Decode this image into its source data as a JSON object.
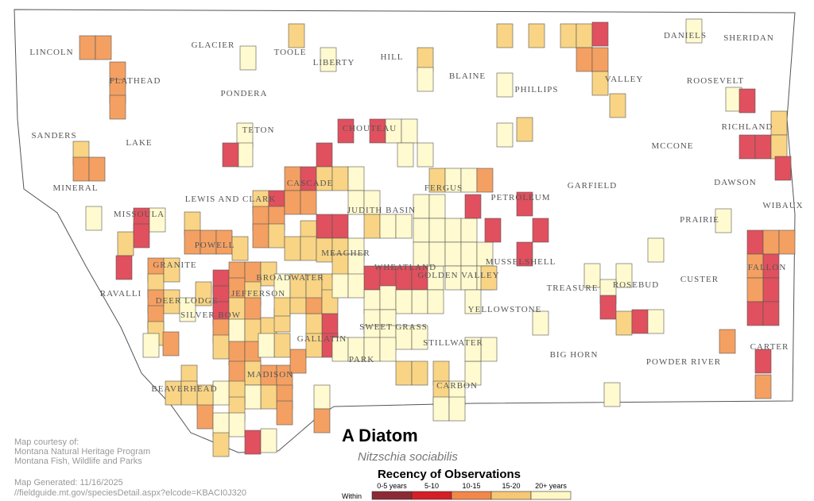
{
  "map": {
    "counties": [
      "LINCOLN",
      "GLACIER",
      "TOOLE",
      "LIBERTY",
      "HILL",
      "BLAINE",
      "PHILLIPS",
      "VALLEY",
      "DANIELS",
      "SHERIDAN",
      "FLATHEAD",
      "PONDERA",
      "ROOSEVELT",
      "SANDERS",
      "TETON",
      "CHOUTEAU",
      "RICHLAND",
      "LAKE",
      "MCCONE",
      "MINERAL",
      "CASCADE",
      "FERGUS",
      "PETROLEUM",
      "GARFIELD",
      "DAWSON",
      "LEWIS AND CLARK",
      "JUDITH BASIN",
      "WIBAUX",
      "MISSOULA",
      "PRAIRIE",
      "POWELL",
      "MEAGHER",
      "MUSSELSHELL",
      "GRANITE",
      "WHEATLAND",
      "GOLDEN VALLEY",
      "FALLON",
      "BROADWATER",
      "CUSTER",
      "TREASURE",
      "ROSEBUD",
      "RAVALLI",
      "DEER LODGE",
      "JEFFERSON",
      "YELLOWSTONE",
      "SILVER BOW",
      "SWEET GRASS",
      "STILLWATER",
      "CARTER",
      "GALLATIN",
      "BIG HORN",
      "POWDER RIVER",
      "PARK",
      "MADISON",
      "BEAVERHEAD",
      "CARBON"
    ],
    "title": "A Diatom",
    "subtitle": "Nitzschia sociabilis",
    "legend": {
      "title": "Recency of Observations",
      "prefix": "Within",
      "items": [
        {
          "label": "0-5 years",
          "color": "#8b2a36"
        },
        {
          "label": "5-10",
          "color": "#d41f26"
        },
        {
          "label": "10-15",
          "color": "#f2874a"
        },
        {
          "label": "15-20",
          "color": "#f6c774"
        },
        {
          "label": "20+ years",
          "color": "#fff8c4"
        }
      ]
    },
    "credits": [
      "Map courtesy of:",
      "Montana Natural Heritage Program",
      "Montana Fish, Wildlife and Parks"
    ],
    "generated": "Map Generated: 11/16/2025",
    "url": "//fieldguide.mt.gov/speciesDetail.aspx?elcode=KBACI0J320"
  }
}
